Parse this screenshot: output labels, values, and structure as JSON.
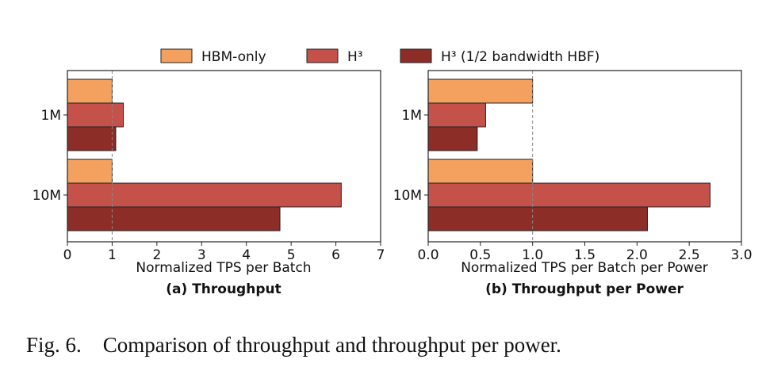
{
  "legend": {
    "entries": [
      {
        "label": "HBM-only",
        "color": "#f4a05e"
      },
      {
        "label": "H³",
        "color": "#c4514a"
      },
      {
        "label": "H³ (1/2 bandwidth HBF)",
        "color": "#8c2e27"
      }
    ]
  },
  "chart_data": [
    {
      "type": "bar",
      "orientation": "horizontal",
      "categories": [
        "1M",
        "10M"
      ],
      "series": [
        {
          "name": "HBM-only",
          "values": [
            1.0,
            1.0
          ],
          "color": "#f4a05e"
        },
        {
          "name": "H³",
          "values": [
            1.25,
            6.12
          ],
          "color": "#c4514a"
        },
        {
          "name": "H³ (1/2 bandwidth HBF)",
          "values": [
            1.08,
            4.75
          ],
          "color": "#8c2e27"
        }
      ],
      "xlabel": "Normalized TPS per Batch",
      "subtitle": "(a) Throughput",
      "xlim": [
        0,
        7
      ],
      "xticks": [
        0,
        1,
        2,
        3,
        4,
        5,
        6,
        7
      ],
      "xtick_labels": [
        "0",
        "1",
        "2",
        "3",
        "4",
        "5",
        "6",
        "7"
      ],
      "reference_line": 1,
      "legend_position": "top"
    },
    {
      "type": "bar",
      "orientation": "horizontal",
      "categories": [
        "1M",
        "10M"
      ],
      "series": [
        {
          "name": "HBM-only",
          "values": [
            1.0,
            1.0
          ],
          "color": "#f4a05e"
        },
        {
          "name": "H³",
          "values": [
            0.55,
            2.7
          ],
          "color": "#c4514a"
        },
        {
          "name": "H³ (1/2 bandwidth HBF)",
          "values": [
            0.47,
            2.1
          ],
          "color": "#8c2e27"
        }
      ],
      "xlabel": "Normalized TPS per Batch per Power",
      "subtitle": "(b) Throughput per Power",
      "xlim": [
        0,
        3
      ],
      "xticks": [
        0,
        0.5,
        1,
        1.5,
        2,
        2.5,
        3
      ],
      "xtick_labels": [
        "0.0",
        "0.5",
        "1.0",
        "1.5",
        "2.0",
        "2.5",
        "3.0"
      ],
      "reference_line": 1,
      "legend_position": "top"
    }
  ],
  "caption": "Fig. 6. Comparison of throughput and throughput per power."
}
